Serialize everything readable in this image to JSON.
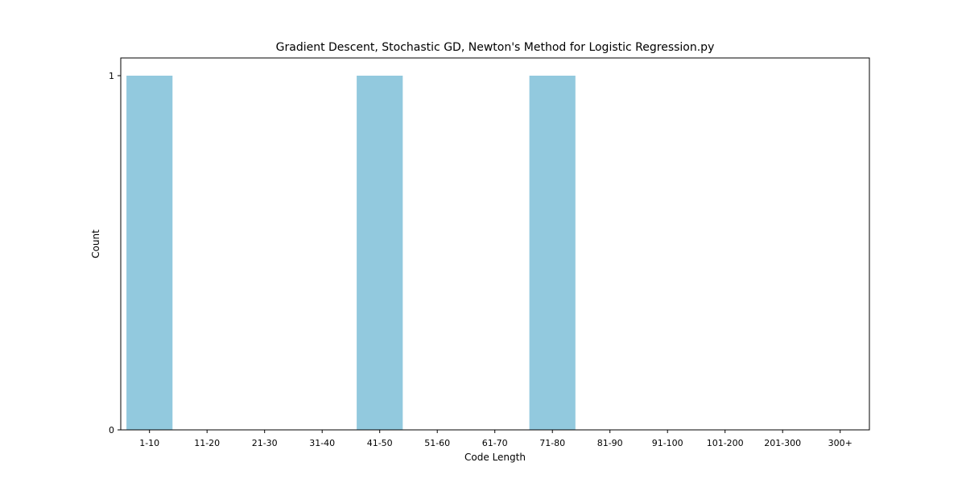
{
  "chart_data": {
    "type": "bar",
    "title": "Gradient Descent, Stochastic GD, Newton's Method for Logistic Regression.py",
    "xlabel": "Code Length",
    "ylabel": "Count",
    "categories": [
      "1-10",
      "11-20",
      "21-30",
      "31-40",
      "41-50",
      "51-60",
      "61-70",
      "71-80",
      "81-90",
      "91-100",
      "101-200",
      "201-300",
      "300+"
    ],
    "values": [
      1,
      0,
      0,
      0,
      1,
      0,
      0,
      1,
      0,
      0,
      0,
      0,
      0
    ],
    "ylim": [
      0,
      1.05
    ],
    "yticks": [
      0,
      1
    ],
    "bar_color": "#92c9de",
    "grid": false
  }
}
